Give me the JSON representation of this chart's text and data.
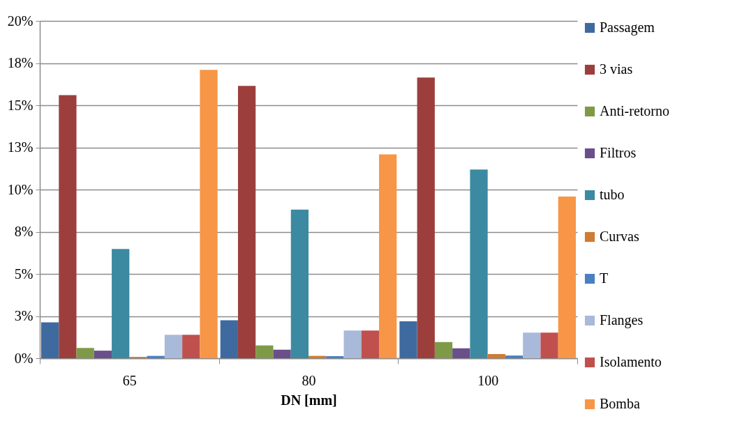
{
  "chart_data": {
    "type": "bar",
    "xlabel": "DN [mm]",
    "categories": [
      "65",
      "80",
      "100"
    ],
    "series": [
      {
        "name": "Passagem",
        "color": "#3f6a9f",
        "values": [
          2.13,
          2.25,
          2.19
        ]
      },
      {
        "name": "3 vias",
        "color": "#9c3f3c",
        "values": [
          15.6,
          16.15,
          16.64
        ]
      },
      {
        "name": "Anti-retorno",
        "color": "#7f9a47",
        "values": [
          0.61,
          0.76,
          0.96
        ]
      },
      {
        "name": "Filtros",
        "color": "#6a4f8a",
        "values": [
          0.45,
          0.51,
          0.59
        ]
      },
      {
        "name": "tubo",
        "color": "#3b8aa1",
        "values": [
          6.48,
          8.81,
          11.19
        ]
      },
      {
        "name": "Curvas",
        "color": "#d07b33",
        "values": [
          0.08,
          0.14,
          0.25
        ]
      },
      {
        "name": "T",
        "color": "#4a7fc4",
        "values": [
          0.14,
          0.12,
          0.16
        ]
      },
      {
        "name": "Flanges",
        "color": "#a9b9d9",
        "values": [
          1.39,
          1.64,
          1.52
        ]
      },
      {
        "name": "Isolamento",
        "color": "#c0504d",
        "values": [
          1.39,
          1.64,
          1.52
        ]
      },
      {
        "name": "Bomba",
        "color": "#f79646",
        "values": [
          17.1,
          12.09,
          9.59
        ]
      }
    ],
    "ylim": [
      0,
      20
    ],
    "yticks": [
      {
        "value": 0,
        "label": "0%"
      },
      {
        "value": 2.5,
        "label": "3%"
      },
      {
        "value": 5,
        "label": "5%"
      },
      {
        "value": 7.5,
        "label": "8%"
      },
      {
        "value": 10,
        "label": "10%"
      },
      {
        "value": 12.5,
        "label": "13%"
      },
      {
        "value": 15,
        "label": "15%"
      },
      {
        "value": 17.5,
        "label": "18%"
      },
      {
        "value": 20,
        "label": "20%"
      }
    ],
    "grid": "y",
    "legend": "right"
  }
}
